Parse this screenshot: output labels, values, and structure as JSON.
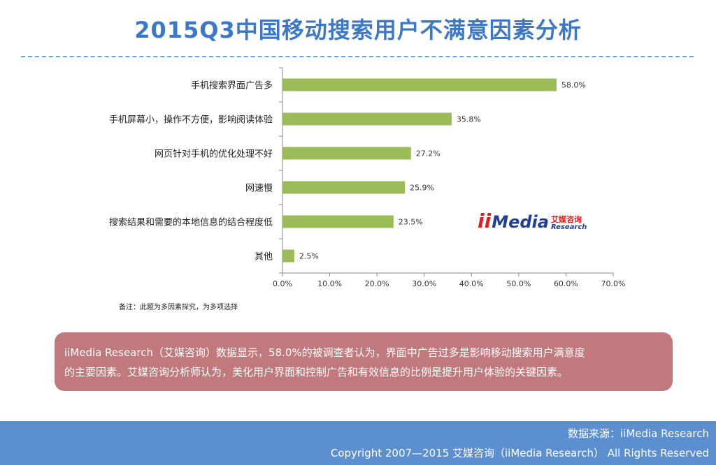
{
  "title": "2015Q3中国移动搜索用户不满意因素分析",
  "footnote": "备注：此题为多因素探究，为多项选择",
  "logo": {
    "brand_ii": "ii",
    "brand_media": "Media",
    "brand_cn": "艾媒咨询",
    "brand_en": "Research"
  },
  "summary": {
    "line1": "iiMedia Research（艾媒咨询）数据显示，58.0%的被调查者认为，界面中广告过多是影响移动搜索用户满意度",
    "line2": "的主要因素。艾媒咨询分析师认为，美化用户界面和控制广告和有效信息的比例是提升用户体验的关键因素。"
  },
  "footer": {
    "source": "数据来源：iiMedia Research",
    "copyright": "Copyright 2007—2015 艾媒咨询（iiMedia Research） All Rights Reserved"
  },
  "colors": {
    "bar": "#9bbb59",
    "title": "#3c78c6",
    "summary_bg": "#c0797c",
    "footer_bg": "#5b8fd0"
  },
  "chart_data": {
    "type": "bar",
    "orientation": "horizontal",
    "categories": [
      "手机搜索界面广告多",
      "手机屏幕小，操作不方便，影响阅读体验",
      "网页针对手机的优化处理不好",
      "网速慢",
      "搜索结果和需要的本地信息的结合程度低",
      "其他"
    ],
    "values": [
      58.0,
      35.8,
      27.2,
      25.9,
      23.5,
      2.5
    ],
    "value_labels": [
      "58.0%",
      "35.8%",
      "27.2%",
      "25.9%",
      "23.5%",
      "2.5%"
    ],
    "xlim": [
      0,
      70
    ],
    "xticks": [
      0,
      10,
      20,
      30,
      40,
      50,
      60,
      70
    ],
    "xtick_labels": [
      "0.0%",
      "10.0%",
      "20.0%",
      "30.0%",
      "40.0%",
      "50.0%",
      "60.0%",
      "70.0%"
    ],
    "grid": false,
    "legend": "none"
  }
}
